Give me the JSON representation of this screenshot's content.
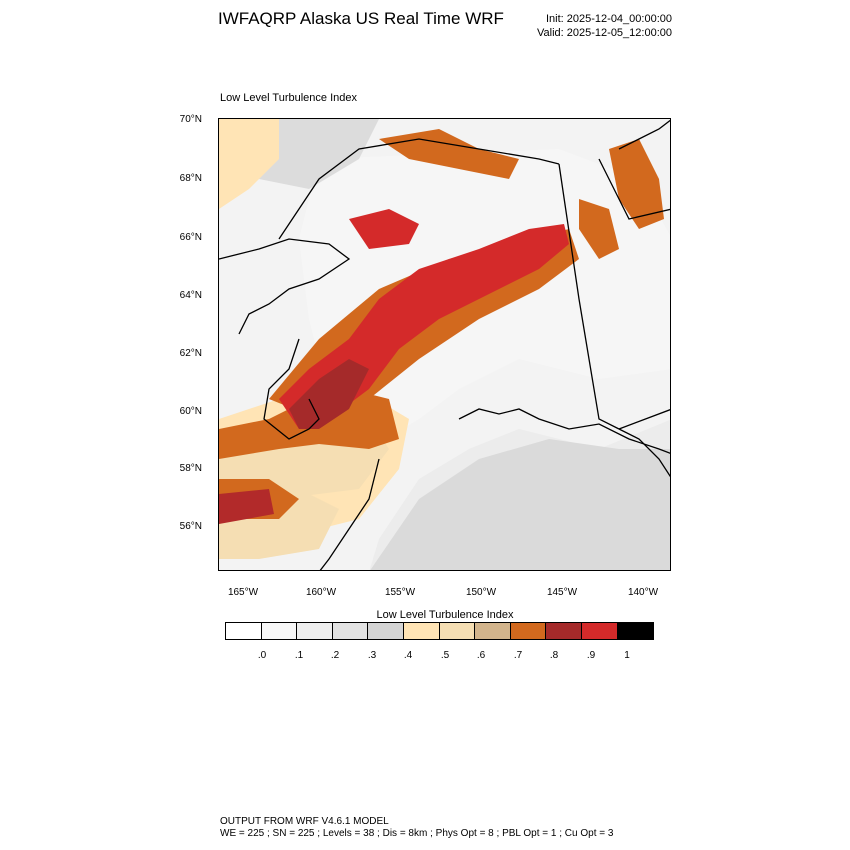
{
  "header": {
    "title": "IWFAQRP Alaska US Real Time WRF",
    "init": "Init: 2025-12-04_00:00:00",
    "valid": "Valid: 2025-12-05_12:00:00"
  },
  "map": {
    "title": "Low Level Turbulence Index",
    "lat_labels": [
      "70°N",
      "68°N",
      "66°N",
      "64°N",
      "62°N",
      "60°N",
      "58°N",
      "56°N"
    ],
    "lon_labels": [
      "165°W",
      "160°W",
      "155°W",
      "150°W",
      "145°W",
      "140°W"
    ]
  },
  "colorbar": {
    "title": "Low Level Turbulence Index",
    "colors": [
      "#ffffff",
      "#f7f7f7",
      "#efefef",
      "#e3e3e3",
      "#d4d4d4",
      "#ffe4b5",
      "#f5deb3",
      "#d2b48c",
      "#d2691e",
      "#a52a2a",
      "#d42a2a",
      "#000000"
    ],
    "labels": [
      ".0",
      ".1",
      ".2",
      ".3",
      ".4",
      ".5",
      ".6",
      ".7",
      ".8",
      ".9",
      "1"
    ]
  },
  "footer": {
    "line1": "OUTPUT FROM WRF V4.6.1 MODEL",
    "line2": "WE = 225 ; SN = 225 ; Levels = 38 ; Dis = 8km ; Phys Opt = 8 ; PBL Opt = 1 ; Cu Opt = 3"
  }
}
